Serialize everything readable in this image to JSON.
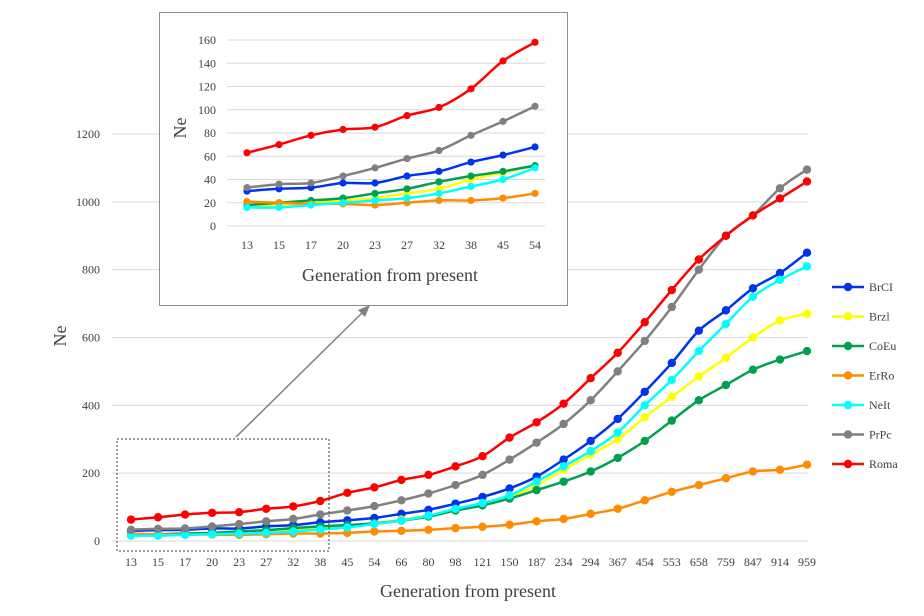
{
  "chart_data": [
    {
      "type": "line",
      "xlabel": "Generation from present",
      "ylabel": "Ne",
      "ylim": [
        0,
        1200
      ],
      "yticks": [
        0,
        200,
        400,
        600,
        800,
        1000,
        1200
      ],
      "grid": "horizontal",
      "legend_position": "right",
      "categories": [
        "13",
        "15",
        "17",
        "20",
        "23",
        "27",
        "32",
        "38",
        "45",
        "54",
        "66",
        "80",
        "98",
        "121",
        "150",
        "187",
        "234",
        "294",
        "367",
        "454",
        "553",
        "658",
        "759",
        "847",
        "914",
        "959"
      ],
      "series": [
        {
          "name": "BrCI",
          "color": "#0033ee",
          "values": [
            30,
            32,
            33,
            37,
            37,
            43,
            47,
            55,
            61,
            68,
            80,
            92,
            110,
            130,
            155,
            190,
            240,
            295,
            360,
            440,
            525,
            620,
            680,
            745,
            790,
            850
          ]
        },
        {
          "name": "Brzl",
          "color": "#ffff00",
          "values": [
            17,
            18,
            20,
            22,
            24,
            28,
            32,
            40,
            46,
            52,
            63,
            75,
            90,
            107,
            130,
            165,
            210,
            255,
            300,
            365,
            425,
            485,
            540,
            600,
            650,
            670
          ]
        },
        {
          "name": "CoEu",
          "color": "#00a050",
          "values": [
            18,
            20,
            22,
            24,
            28,
            32,
            38,
            43,
            47,
            52,
            60,
            72,
            90,
            105,
            125,
            150,
            175,
            205,
            245,
            295,
            355,
            415,
            460,
            505,
            535,
            560
          ]
        },
        {
          "name": "ErRo",
          "color": "#ff8c00",
          "values": [
            21,
            20,
            19,
            19,
            18,
            20,
            22,
            22,
            24,
            28,
            30,
            33,
            38,
            42,
            48,
            58,
            65,
            80,
            95,
            120,
            145,
            165,
            185,
            205,
            210,
            225
          ]
        },
        {
          "name": "NeIt",
          "color": "#00ffff",
          "values": [
            16,
            16,
            18,
            20,
            22,
            24,
            28,
            34,
            40,
            50,
            60,
            75,
            95,
            112,
            135,
            175,
            220,
            265,
            320,
            400,
            475,
            560,
            640,
            720,
            770,
            810
          ]
        },
        {
          "name": "PrPc",
          "color": "#808080",
          "values": [
            33,
            36,
            37,
            43,
            50,
            58,
            65,
            78,
            90,
            103,
            120,
            140,
            165,
            195,
            240,
            290,
            345,
            415,
            500,
            590,
            690,
            800,
            900,
            960,
            1040,
            1095
          ]
        },
        {
          "name": "Roma",
          "color": "#ff0000",
          "values": [
            63,
            70,
            78,
            83,
            85,
            95,
            102,
            118,
            142,
            158,
            180,
            195,
            220,
            250,
            305,
            350,
            405,
            480,
            555,
            645,
            740,
            830,
            900,
            960,
            1010,
            1060
          ]
        }
      ]
    },
    {
      "type": "line",
      "xlabel": "Generation from present",
      "ylabel": "Ne",
      "ylim": [
        0,
        160
      ],
      "yticks": [
        0,
        20,
        40,
        60,
        80,
        100,
        120,
        140,
        160
      ],
      "grid": "horizontal",
      "categories": [
        "13",
        "15",
        "17",
        "20",
        "23",
        "27",
        "32",
        "38",
        "45",
        "54"
      ],
      "series": [
        {
          "name": "BrCI",
          "color": "#0033ee",
          "values": [
            30,
            32,
            33,
            37,
            37,
            43,
            47,
            55,
            61,
            68
          ]
        },
        {
          "name": "Brzl",
          "color": "#ffff00",
          "values": [
            17,
            18,
            20,
            22,
            24,
            28,
            32,
            40,
            46,
            52
          ]
        },
        {
          "name": "CoEu",
          "color": "#00a050",
          "values": [
            18,
            20,
            22,
            24,
            28,
            32,
            38,
            43,
            47,
            52
          ]
        },
        {
          "name": "ErRo",
          "color": "#ff8c00",
          "values": [
            21,
            20,
            19,
            19,
            18,
            20,
            22,
            22,
            24,
            28
          ]
        },
        {
          "name": "NeIt",
          "color": "#00ffff",
          "values": [
            16,
            16,
            18,
            20,
            22,
            24,
            28,
            34,
            40,
            50
          ]
        },
        {
          "name": "PrPc",
          "color": "#808080",
          "values": [
            33,
            36,
            37,
            43,
            50,
            58,
            65,
            78,
            90,
            103
          ]
        },
        {
          "name": "Roma",
          "color": "#ff0000",
          "values": [
            63,
            70,
            78,
            83,
            85,
            95,
            102,
            118,
            142,
            158
          ]
        }
      ]
    }
  ]
}
